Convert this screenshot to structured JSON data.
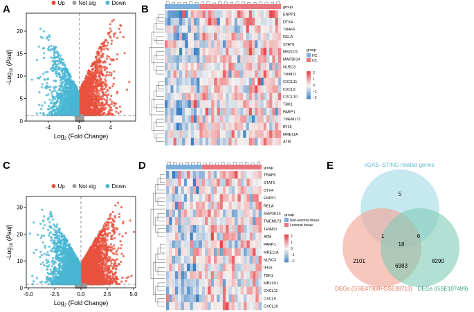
{
  "panel_labels": [
    "A",
    "B",
    "C",
    "D",
    "E"
  ],
  "colors": {
    "up": "#e8513e",
    "notsig": "#9b9b9b",
    "down": "#4ab7d3",
    "hm_low": "#3b7fc4",
    "hm_mid": "#f5f3f1",
    "hm_high": "#e8464c",
    "hc": "#7aaedb",
    "uc": "#e8757b",
    "venn_top": "#a8dbe7",
    "venn_left": "#f2a89a",
    "venn_right": "#7ecbb6",
    "venn_top_label": "#57b9d0",
    "venn_left_label": "#e36b55",
    "venn_right_label": "#2e9d86"
  },
  "chart_data": [
    {
      "id": "volcano-A",
      "type": "scatter",
      "title": "",
      "legend": [
        {
          "label": "Up"
        },
        {
          "label": "Not sig"
        },
        {
          "label": "Down"
        }
      ],
      "xlabel_prefix": "Log",
      "xlabel_sub": "2",
      "xlabel_suffix": " (Fold Change)",
      "ylabel_prefix": "-Log",
      "ylabel_sub": "10",
      "ylabel_suffix": " (",
      "ylabel_italic": "Padj",
      "ylabel_end": ")",
      "xlim": [
        -6.8,
        7.2
      ],
      "ylim": [
        0,
        24
      ],
      "xticks": [
        -4,
        0,
        4
      ],
      "xtick_labels": [
        "-4",
        "0",
        "4"
      ],
      "yticks": [
        0,
        5,
        10,
        15,
        20
      ],
      "ytick_labels": [
        "0",
        "5",
        "10",
        "15",
        "20"
      ],
      "threshold_y": 1.3,
      "threshold_x": 0,
      "series": [
        {
          "name": "Up",
          "n_points": 1500,
          "x_range": [
            0,
            6.5
          ],
          "y_max": 23
        },
        {
          "name": "Not sig",
          "n_points": 220,
          "x_range": [
            -0.5,
            0.5
          ],
          "y_max": 1.3
        },
        {
          "name": "Down",
          "n_points": 1300,
          "x_range": [
            -6.5,
            0
          ],
          "y_max": 21
        }
      ]
    },
    {
      "id": "volcano-C",
      "type": "scatter",
      "title": "",
      "legend": [
        {
          "label": "Up"
        },
        {
          "label": "Not sig"
        },
        {
          "label": "Down"
        }
      ],
      "xlabel_prefix": "Log",
      "xlabel_sub": "2",
      "xlabel_suffix": " (Fold Change)",
      "ylabel_prefix": "-Log",
      "ylabel_sub": "10",
      "ylabel_suffix": " (",
      "ylabel_italic": "Padj",
      "ylabel_end": ")",
      "xlim": [
        -5.2,
        5.2
      ],
      "ylim": [
        0,
        34
      ],
      "xticks": [
        -5,
        -2.5,
        0,
        2.5,
        5
      ],
      "xtick_labels": [
        "-5.0",
        "-2.5",
        "0.0",
        "2.5",
        "5.0"
      ],
      "yticks": [
        0,
        10,
        20,
        30
      ],
      "ytick_labels": [
        "0",
        "10",
        "20",
        "30"
      ],
      "threshold_y": 1.3,
      "threshold_x": 0,
      "series": [
        {
          "name": "Up",
          "n_points": 2400,
          "x_range": [
            0,
            5
          ],
          "y_max": 32
        },
        {
          "name": "Not sig",
          "n_points": 300,
          "x_range": [
            -0.5,
            0.5
          ],
          "y_max": 1.3
        },
        {
          "name": "Down",
          "n_points": 2000,
          "x_range": [
            -4.8,
            0
          ],
          "y_max": 31
        }
      ]
    },
    {
      "id": "heatmap-B",
      "type": "heatmap",
      "group_label": "group",
      "genes": [
        "ENPP1",
        "DTX4",
        "TRAF6",
        "RELA",
        "STAT6",
        "MB21D1",
        "MAP3K14",
        "NLRC3",
        "TRIM21",
        "CXCL11",
        "CXCL9",
        "CXCL10",
        "TBK1",
        "PARP1",
        "TMEM173",
        "IFI16",
        "MRE11A",
        "ATM"
      ],
      "groups": [
        {
          "name": "HC",
          "n": 12
        },
        {
          "name": "UC",
          "n": 28
        }
      ],
      "legend_title": "group",
      "scale_ticks": [
        2,
        1,
        0,
        -1,
        -2
      ],
      "scale_labels": [
        "2",
        "1",
        "0",
        "−1",
        "−2"
      ]
    },
    {
      "id": "heatmap-D",
      "type": "heatmap",
      "group_label": "group",
      "genes": [
        "TRAF6",
        "STAT6",
        "DTX4",
        "ENPP1",
        "RELA",
        "MAP3K14",
        "TMEM173",
        "TRIM21",
        "ATM",
        "PARP1",
        "MRE11A",
        "NLRC3",
        "IFI16",
        "TBK1",
        "MB21D1",
        "CXCL11",
        "CXCL9",
        "CXCL10"
      ],
      "groups": [
        {
          "name": "Non-lesional tissue",
          "n": 12
        },
        {
          "name": "Lesional tissue",
          "n": 20
        }
      ],
      "legend_title": "group",
      "scale_ticks": [
        2,
        1,
        0,
        -1,
        -2
      ],
      "scale_labels": [
        "2",
        "1",
        "0",
        "−1",
        "−2"
      ]
    },
    {
      "id": "venn-E",
      "type": "venn",
      "sets": [
        {
          "name": "cGAS−STING related genes"
        },
        {
          "name": "DEGs (GSE47908+GSE38713)"
        },
        {
          "name": "DEGs (GSE107499)"
        }
      ],
      "regions": {
        "top_only": 5,
        "left_only": 2101,
        "right_only": 8290,
        "top_left": 1,
        "top_right": 6,
        "left_right": 6983,
        "all": 18
      }
    }
  ]
}
